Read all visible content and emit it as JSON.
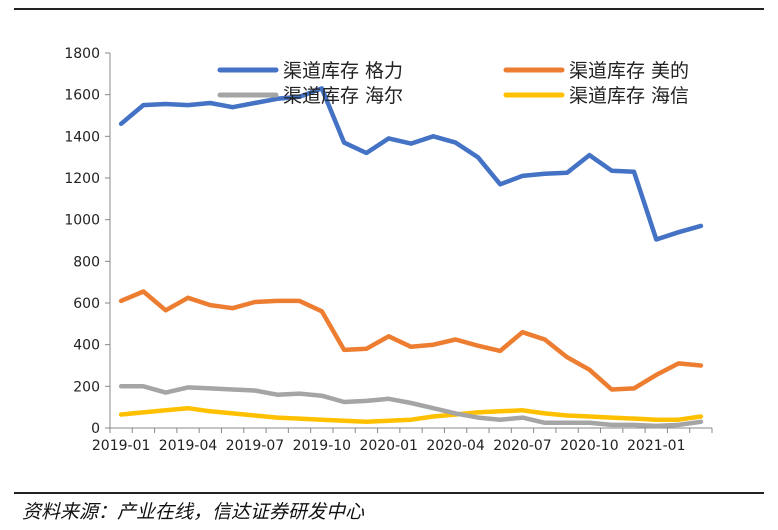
{
  "source_note": "资料来源：产业在线，信达证券研发中心",
  "colors": {
    "gree": "#4472C4",
    "midea": "#ED7D31",
    "haier": "#A5A5A5",
    "hisense": "#FFC000",
    "axis": "#888888",
    "text": "#222222"
  },
  "chart_data": {
    "type": "line",
    "title": "",
    "xlabel": "",
    "ylabel": "",
    "ylim": [
      0,
      1800
    ],
    "y_ticks": [
      "0",
      "200",
      "400",
      "600",
      "800",
      "1000",
      "1200",
      "1400",
      "1600",
      "1800"
    ],
    "x_tick_labels": [
      "2019-01",
      "2019-04",
      "2019-07",
      "2019-10",
      "2020-01",
      "2020-04",
      "2020-07",
      "2020-10",
      "2021-01"
    ],
    "x": [
      "2019-01",
      "2019-02",
      "2019-03",
      "2019-04",
      "2019-05",
      "2019-06",
      "2019-07",
      "2019-08",
      "2019-09",
      "2019-10",
      "2019-11",
      "2019-12",
      "2020-01",
      "2020-02",
      "2020-03",
      "2020-04",
      "2020-05",
      "2020-06",
      "2020-07",
      "2020-08",
      "2020-09",
      "2020-10",
      "2020-11",
      "2020-12",
      "2021-01",
      "2021-02",
      "2021-03"
    ],
    "grid": false,
    "legend_position": "top",
    "series": [
      {
        "name": "渠道库存 格力",
        "color": "#4472C4",
        "values": [
          1460,
          1550,
          1555,
          1550,
          1560,
          1540,
          1560,
          1580,
          1590,
          1630,
          1370,
          1320,
          1390,
          1365,
          1400,
          1370,
          1300,
          1170,
          1210,
          1220,
          1225,
          1310,
          1235,
          1230,
          905,
          940,
          970
        ]
      },
      {
        "name": "渠道库存 美的",
        "color": "#ED7D31",
        "values": [
          610,
          655,
          565,
          625,
          590,
          575,
          605,
          610,
          610,
          560,
          375,
          380,
          440,
          390,
          400,
          425,
          395,
          370,
          460,
          425,
          340,
          280,
          185,
          190,
          255,
          310,
          300
        ]
      },
      {
        "name": "渠道库存 海尔",
        "color": "#A5A5A5",
        "values": [
          200,
          200,
          170,
          195,
          190,
          185,
          180,
          160,
          165,
          155,
          125,
          130,
          140,
          120,
          95,
          70,
          50,
          40,
          50,
          25,
          25,
          25,
          15,
          15,
          10,
          15,
          30
        ]
      },
      {
        "name": "渠道库存 海信",
        "color": "#FFC000",
        "values": [
          65,
          75,
          85,
          95,
          80,
          70,
          60,
          50,
          45,
          40,
          35,
          30,
          35,
          40,
          55,
          65,
          75,
          80,
          85,
          70,
          60,
          55,
          50,
          45,
          40,
          40,
          55
        ]
      }
    ]
  }
}
